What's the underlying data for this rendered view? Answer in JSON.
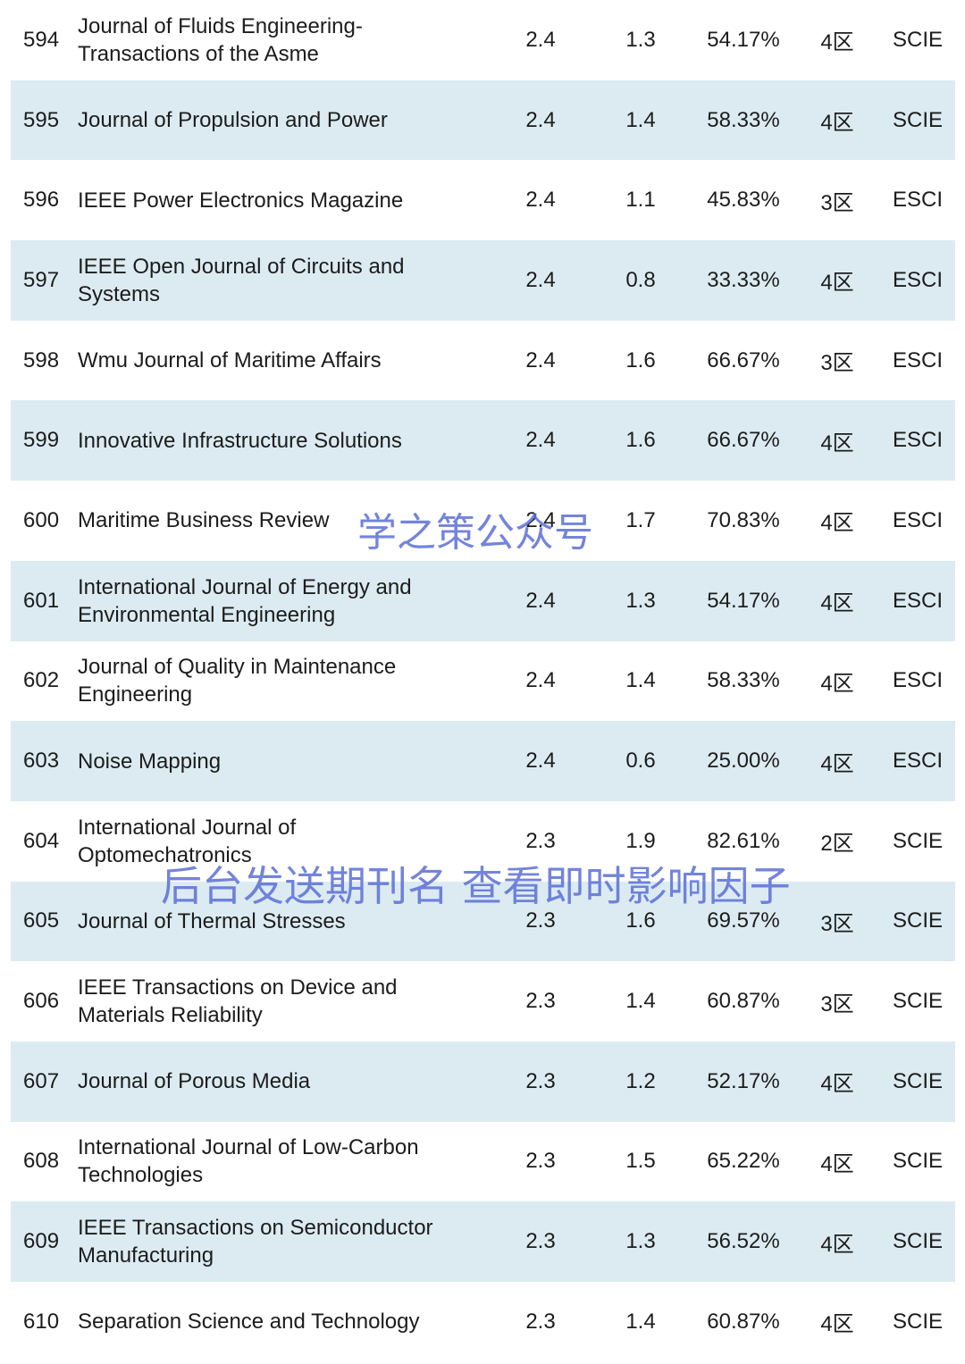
{
  "rows": [
    {
      "no": "594",
      "name": "Journal of Fluids Engineering-\nTransactions of the Asme",
      "if": "2.4",
      "f2": "1.3",
      "pct": "54.17%",
      "zone": "4区",
      "index": "SCIE"
    },
    {
      "no": "595",
      "name": "Journal of Propulsion and Power",
      "if": "2.4",
      "f2": "1.4",
      "pct": "58.33%",
      "zone": "4区",
      "index": "SCIE"
    },
    {
      "no": "596",
      "name": "IEEE Power Electronics Magazine",
      "if": "2.4",
      "f2": "1.1",
      "pct": "45.83%",
      "zone": "3区",
      "index": "ESCI"
    },
    {
      "no": "597",
      "name": "IEEE Open Journal of Circuits and\nSystems",
      "if": "2.4",
      "f2": "0.8",
      "pct": "33.33%",
      "zone": "4区",
      "index": "ESCI"
    },
    {
      "no": "598",
      "name": "Wmu Journal of Maritime Affairs",
      "if": "2.4",
      "f2": "1.6",
      "pct": "66.67%",
      "zone": "3区",
      "index": "ESCI"
    },
    {
      "no": "599",
      "name": "Innovative Infrastructure Solutions",
      "if": "2.4",
      "f2": "1.6",
      "pct": "66.67%",
      "zone": "4区",
      "index": "ESCI"
    },
    {
      "no": "600",
      "name": "Maritime Business Review",
      "if": "2.4",
      "f2": "1.7",
      "pct": "70.83%",
      "zone": "4区",
      "index": "ESCI"
    },
    {
      "no": "601",
      "name": "International Journal of Energy and\nEnvironmental Engineering",
      "if": "2.4",
      "f2": "1.3",
      "pct": "54.17%",
      "zone": "4区",
      "index": "ESCI"
    },
    {
      "no": "602",
      "name": "Journal of Quality in Maintenance\nEngineering",
      "if": "2.4",
      "f2": "1.4",
      "pct": "58.33%",
      "zone": "4区",
      "index": "ESCI"
    },
    {
      "no": "603",
      "name": "Noise Mapping",
      "if": "2.4",
      "f2": "0.6",
      "pct": "25.00%",
      "zone": "4区",
      "index": "ESCI"
    },
    {
      "no": "604",
      "name": "International Journal of\nOptomechatronics",
      "if": "2.3",
      "f2": "1.9",
      "pct": "82.61%",
      "zone": "2区",
      "index": "SCIE"
    },
    {
      "no": "605",
      "name": "Journal of Thermal Stresses",
      "if": "2.3",
      "f2": "1.6",
      "pct": "69.57%",
      "zone": "3区",
      "index": "SCIE"
    },
    {
      "no": "606",
      "name": "IEEE Transactions on Device and\nMaterials Reliability",
      "if": "2.3",
      "f2": "1.4",
      "pct": "60.87%",
      "zone": "3区",
      "index": "SCIE"
    },
    {
      "no": "607",
      "name": "Journal of Porous Media",
      "if": "2.3",
      "f2": "1.2",
      "pct": "52.17%",
      "zone": "4区",
      "index": "SCIE"
    },
    {
      "no": "608",
      "name": "International Journal of Low-Carbon\nTechnologies",
      "if": "2.3",
      "f2": "1.5",
      "pct": "65.22%",
      "zone": "4区",
      "index": "SCIE"
    },
    {
      "no": "609",
      "name": "IEEE Transactions on Semiconductor\nManufacturing",
      "if": "2.3",
      "f2": "1.3",
      "pct": "56.52%",
      "zone": "4区",
      "index": "SCIE"
    },
    {
      "no": "610",
      "name": "Separation Science and Technology",
      "if": "2.3",
      "f2": "1.4",
      "pct": "60.87%",
      "zone": "4区",
      "index": "SCIE"
    }
  ],
  "watermark_1": "学之策公众号",
  "watermark_2": "后台发送期刊名 查看即时影响因子"
}
